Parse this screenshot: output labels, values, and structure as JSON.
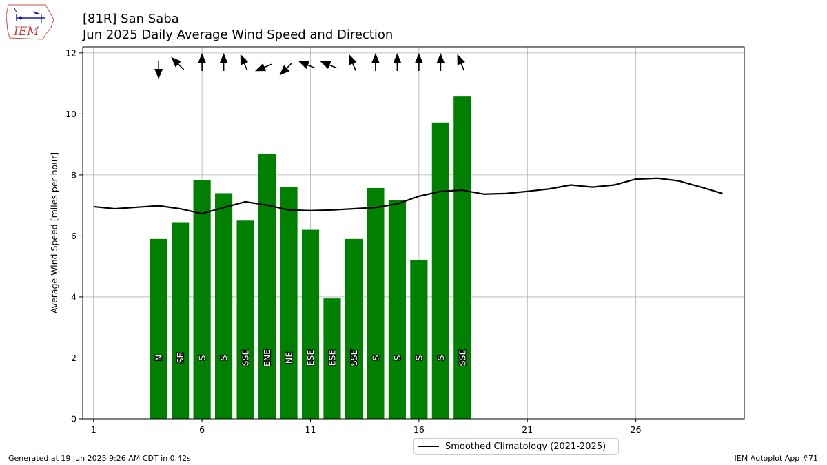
{
  "header": {
    "title": "[81R] San Saba",
    "subtitle": "Jun 2025 Daily Average Wind Speed and Direction",
    "logo_text": "IEM"
  },
  "footer": {
    "generated": "Generated at 19 Jun 2025 9:26 AM CDT in 0.42s",
    "app": "IEM Autoplot App #71"
  },
  "legend": {
    "climatology_label": "Smoothed Climatology (2021-2025)"
  },
  "chart_data": {
    "type": "bar",
    "ylabel": "Average Wind Speed [miles per hour]",
    "xlim": [
      0.5,
      31
    ],
    "ylim": [
      0,
      12.2
    ],
    "xticks": [
      1,
      6,
      11,
      16,
      21,
      26
    ],
    "yticks": [
      0,
      2,
      4,
      6,
      8,
      10,
      12
    ],
    "grid": true,
    "bar_color": "#008000",
    "legend_position": "bottom-center",
    "bars": [
      {
        "day": 4,
        "value": 5.9,
        "direction": "N",
        "dir_deg": 0
      },
      {
        "day": 5,
        "value": 6.45,
        "direction": "SE",
        "dir_deg": 135
      },
      {
        "day": 6,
        "value": 7.82,
        "direction": "S",
        "dir_deg": 180
      },
      {
        "day": 7,
        "value": 7.4,
        "direction": "S",
        "dir_deg": 180
      },
      {
        "day": 8,
        "value": 6.5,
        "direction": "SSE",
        "dir_deg": 157.5
      },
      {
        "day": 9,
        "value": 8.7,
        "direction": "ENE",
        "dir_deg": 67.5
      },
      {
        "day": 10,
        "value": 7.6,
        "direction": "NE",
        "dir_deg": 45
      },
      {
        "day": 11,
        "value": 6.2,
        "direction": "ESE",
        "dir_deg": 112.5
      },
      {
        "day": 12,
        "value": 3.95,
        "direction": "ESE",
        "dir_deg": 112.5
      },
      {
        "day": 13,
        "value": 5.9,
        "direction": "SSE",
        "dir_deg": 157.5
      },
      {
        "day": 14,
        "value": 7.57,
        "direction": "S",
        "dir_deg": 180
      },
      {
        "day": 15,
        "value": 7.17,
        "direction": "S",
        "dir_deg": 180
      },
      {
        "day": 16,
        "value": 5.22,
        "direction": "S",
        "dir_deg": 180
      },
      {
        "day": 17,
        "value": 9.72,
        "direction": "S",
        "dir_deg": 180
      },
      {
        "day": 18,
        "value": 10.57,
        "direction": "SSE",
        "dir_deg": 157.5
      }
    ],
    "climatology": {
      "name": "Smoothed Climatology (2021-2025)",
      "days": [
        1,
        2,
        3,
        4,
        5,
        6,
        7,
        8,
        9,
        10,
        11,
        12,
        13,
        14,
        15,
        16,
        17,
        18,
        19,
        20,
        21,
        22,
        23,
        24,
        25,
        26,
        27,
        28,
        29,
        30
      ],
      "values": [
        6.96,
        6.89,
        6.94,
        6.99,
        6.89,
        6.73,
        6.93,
        7.12,
        7.01,
        6.85,
        6.83,
        6.85,
        6.89,
        6.93,
        7.05,
        7.3,
        7.46,
        7.5,
        7.37,
        7.39,
        7.46,
        7.54,
        7.67,
        7.6,
        7.67,
        7.86,
        7.89,
        7.8,
        7.6,
        7.39
      ]
    }
  }
}
